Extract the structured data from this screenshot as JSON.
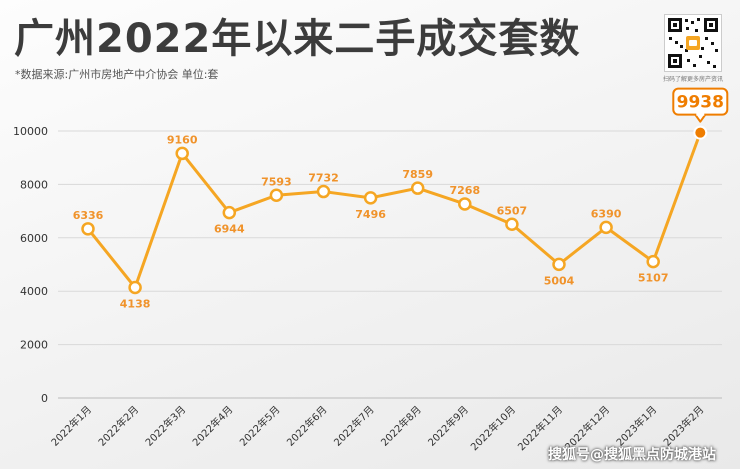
{
  "header": {
    "title": "广州2022年以来二手成交套数",
    "source": "*数据来源:广州市房地产中介协会   单位:套"
  },
  "qr": {
    "caption": "扫码了解更多房产资讯"
  },
  "watermark": "搜狐号@搜狐黑点防城港站",
  "colors": {
    "line": "#f5a623",
    "label": "#f0932b",
    "highlight": "#ef7d00",
    "grid": "#d9d9d9"
  },
  "chart_data": {
    "type": "line",
    "title": "广州2022年以来二手成交套数",
    "xlabel": "",
    "ylabel": "",
    "unit": "套",
    "categories": [
      "2022年1月",
      "2022年2月",
      "2022年3月",
      "2022年4月",
      "2022年5月",
      "2022年6月",
      "2022年7月",
      "2022年8月",
      "2022年9月",
      "2022年10月",
      "2022年11月",
      "2022年12月",
      "2023年1月",
      "2023年2月"
    ],
    "values": [
      6336,
      4138,
      9160,
      6944,
      7593,
      7732,
      7496,
      7859,
      7268,
      6507,
      5004,
      6390,
      5107,
      9938
    ],
    "ylim": [
      0,
      10000
    ],
    "yticks": [
      0,
      2000,
      4000,
      6000,
      8000,
      10000
    ],
    "grid": true,
    "highlight_last": true
  }
}
